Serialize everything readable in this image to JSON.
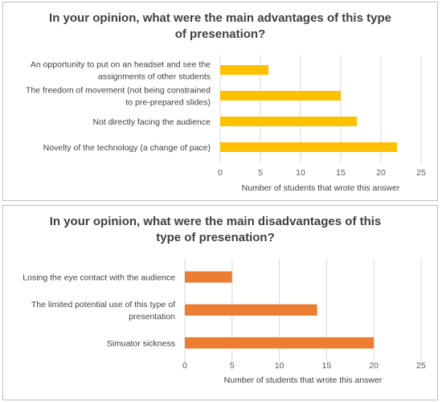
{
  "colors": {
    "advantages": "#FFC000",
    "disadvantages": "#ED7D31",
    "grid": "#d9d9d9"
  },
  "chart_data": [
    {
      "type": "bar",
      "orientation": "horizontal",
      "title": [
        "In your opinion, what were the main advantages of this type",
        "of presenation?"
      ],
      "categories": [
        [
          "An opportunity to put on an headset and see the",
          "assignments of other students"
        ],
        [
          "The freedom of movement (not being constrained",
          "to pre-prepared slides)"
        ],
        [
          "Not directly facing the audience"
        ],
        [
          "Novelty of the technology (a change of pace)"
        ]
      ],
      "values": [
        6,
        15,
        17,
        22
      ],
      "xlabel": "Number of students that wrote this answer",
      "xlim": [
        0,
        25
      ],
      "ticks": [
        "0",
        "5",
        "10",
        "15",
        "20",
        "25"
      ],
      "grid": true,
      "color": "#FFC000"
    },
    {
      "type": "bar",
      "orientation": "horizontal",
      "title": [
        "In your opinion, what were the main disadvantages of this",
        "type of presenation?"
      ],
      "categories": [
        [
          "Losing the eye contact with the audience"
        ],
        [
          "The limited potential use of this type of",
          "presentation"
        ],
        [
          "Simuator sickness"
        ]
      ],
      "values": [
        5,
        14,
        20
      ],
      "xlabel": "Number of students that wrote this answer",
      "xlim": [
        0,
        25
      ],
      "ticks": [
        "0",
        "5",
        "10",
        "15",
        "20",
        "25"
      ],
      "grid": true,
      "color": "#ED7D31"
    }
  ]
}
